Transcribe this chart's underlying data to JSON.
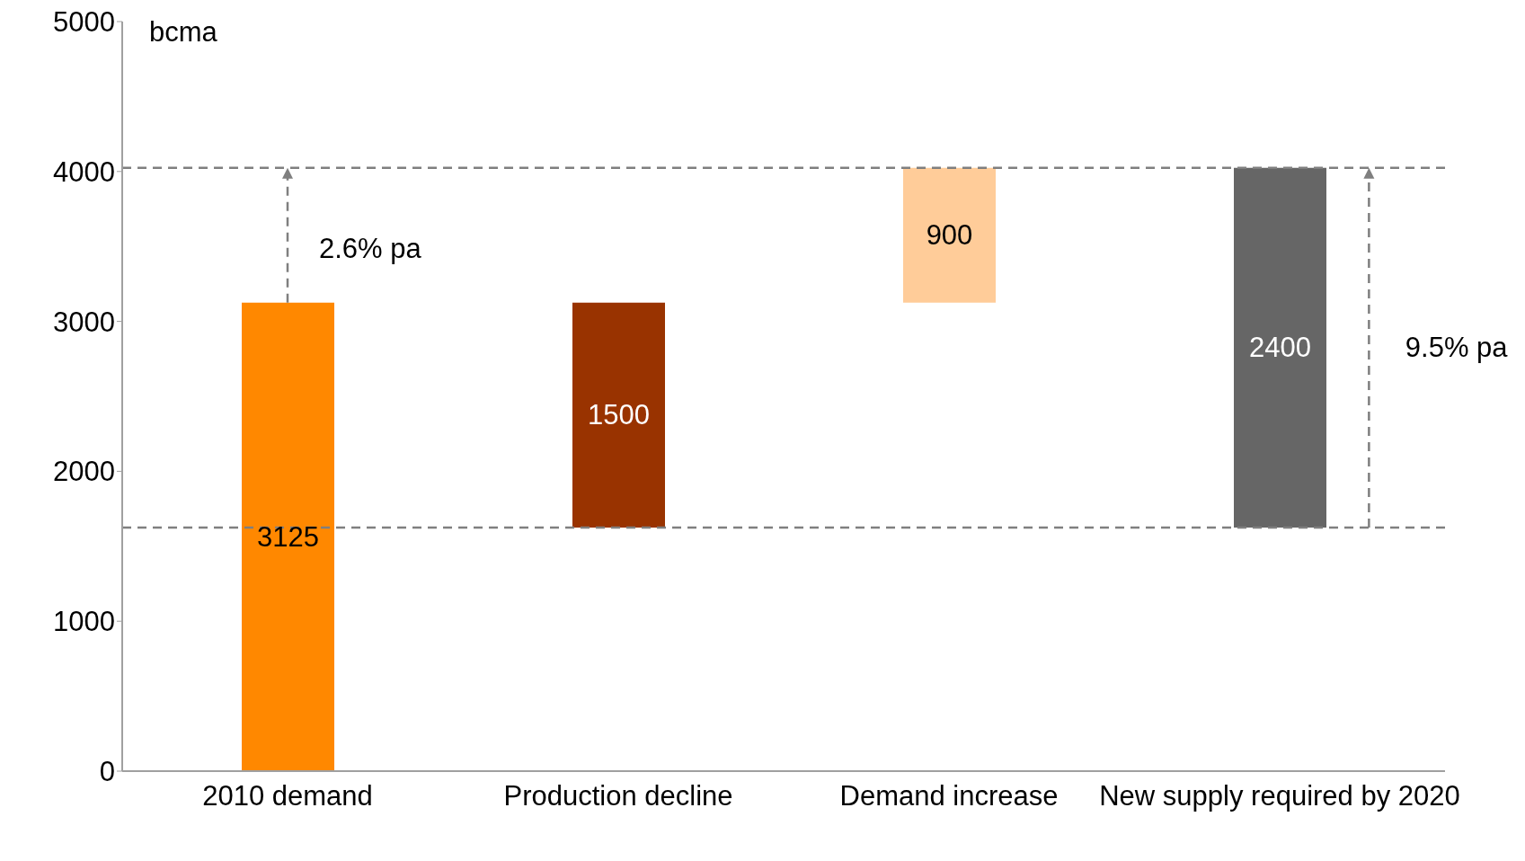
{
  "chart_data": {
    "type": "bar",
    "ylabel": "bcma",
    "categories": [
      "2010 demand",
      "Production decline",
      "Demand increase",
      "New supply required by 2020"
    ],
    "values": [
      3125,
      1500,
      900,
      2400
    ],
    "base": [
      0,
      1625,
      3125,
      1625
    ],
    "colors": [
      "#ff8800",
      "#993300",
      "#ffcc99",
      "#666666"
    ],
    "ylim": [
      0,
      5000
    ],
    "yticks": [
      0,
      1000,
      2000,
      3000,
      4000,
      5000
    ],
    "grid": false,
    "data_labels": true,
    "ref_lines": [
      {
        "axis": "y",
        "value": 4025,
        "color": "#7f7f7f",
        "line_style": "dashed"
      },
      {
        "axis": "y",
        "value": 1625,
        "color": "#7f7f7f",
        "line_style": "dashed"
      }
    ],
    "annotations": [
      "2.6% pa",
      "9.5% pa"
    ]
  }
}
